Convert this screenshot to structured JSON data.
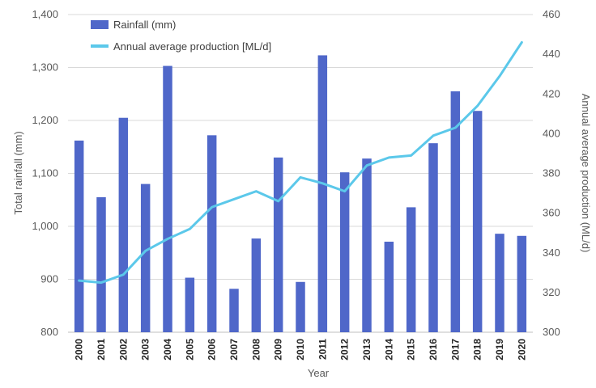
{
  "chart_data": {
    "type": "bar+line",
    "title": "",
    "xlabel": "Year",
    "ylabel_left": "Total rainfall (mm)",
    "ylabel_right": "Annual average production (ML/d)",
    "ylim_left": [
      800,
      1400
    ],
    "ylim_right": [
      300,
      460
    ],
    "yticks_left": [
      "800",
      "900",
      "1,000",
      "1,100",
      "1,200",
      "1,300",
      "1,400"
    ],
    "yticks_right": [
      "300",
      "320",
      "340",
      "360",
      "380",
      "400",
      "420",
      "440",
      "460"
    ],
    "categories": [
      "2000",
      "2001",
      "2002",
      "2003",
      "2004",
      "2005",
      "2006",
      "2007",
      "2008",
      "2009",
      "2010",
      "2011",
      "2012",
      "2013",
      "2014",
      "2015",
      "2016",
      "2017",
      "2018",
      "2019",
      "2020"
    ],
    "grid": true,
    "legend_position": "top-left",
    "series": [
      {
        "name": "Rainfall (mm)",
        "type": "bar",
        "axis": "left",
        "color": "#4f67c9",
        "values": [
          1162,
          1055,
          1205,
          1080,
          1303,
          903,
          1172,
          882,
          977,
          1130,
          895,
          1323,
          1102,
          1128,
          971,
          1036,
          1157,
          1255,
          1218,
          986,
          982
        ]
      },
      {
        "name": "Annual average production [ML/d]",
        "type": "line",
        "axis": "right",
        "color": "#5bc8ea",
        "values": [
          326,
          325,
          329,
          341,
          347,
          352,
          363,
          367,
          371,
          366,
          378,
          375,
          371,
          384,
          388,
          389,
          399,
          403,
          414,
          429,
          446
        ]
      }
    ]
  }
}
